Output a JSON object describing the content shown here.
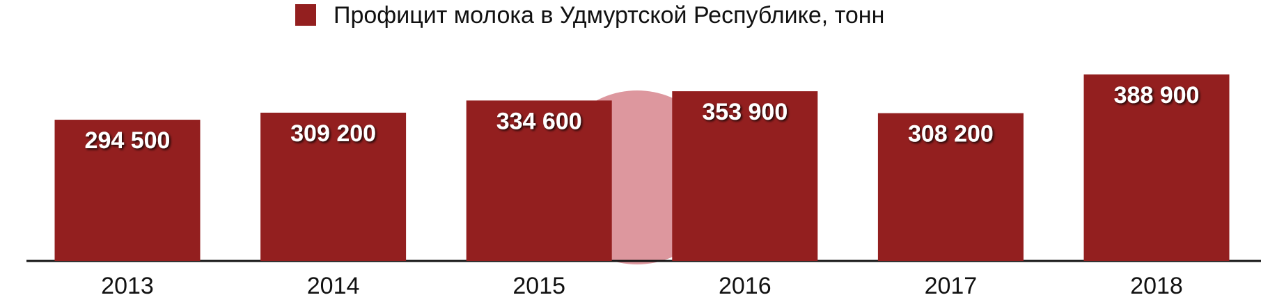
{
  "chart_data": {
    "type": "bar",
    "categories": [
      "2013",
      "2014",
      "2015",
      "2016",
      "2017",
      "2018"
    ],
    "series": [
      {
        "name": "Профицит молока в Удмуртской Республике, тонн",
        "color": "#931f1f",
        "values": [
          294500,
          309200,
          334600,
          353900,
          308200,
          388900
        ],
        "value_labels": [
          "294 500",
          "309 200",
          "334 600",
          "353 900",
          "308 200",
          "388 900"
        ]
      }
    ]
  }
}
